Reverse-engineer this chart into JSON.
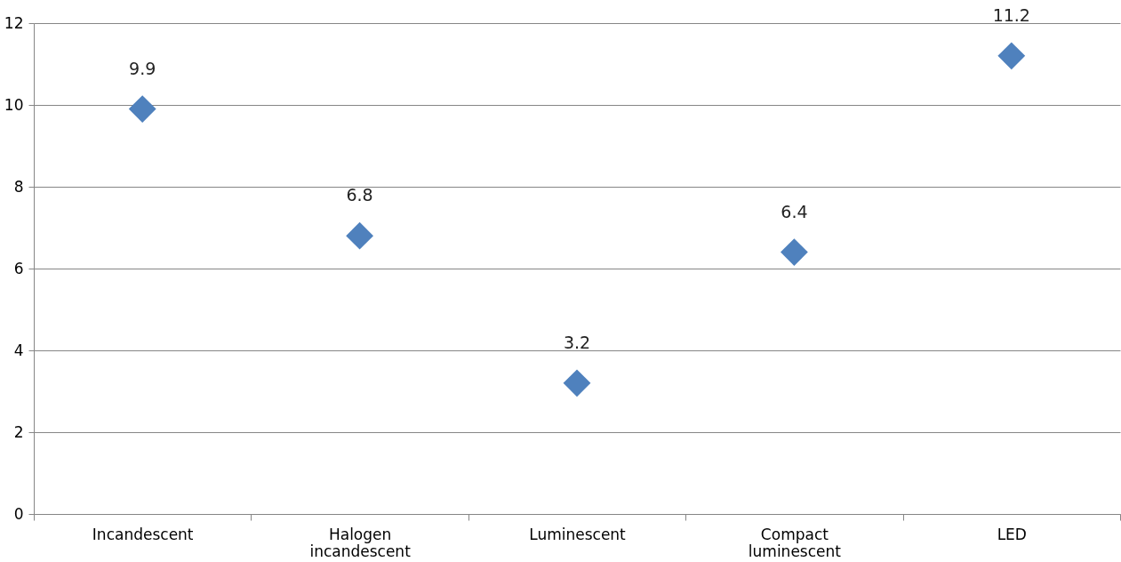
{
  "chart_data": {
    "type": "scatter",
    "categories": [
      "Incandescent",
      "Halogen incandescent",
      "Luminescent",
      "Compact luminescent",
      "LED"
    ],
    "series": [
      {
        "color": "#4f81bd",
        "values": [
          9.9,
          6.8,
          3.2,
          6.4,
          11.2
        ]
      }
    ],
    "ylim": [
      0,
      12
    ],
    "yticks": [
      0,
      2,
      4,
      6,
      8,
      10,
      12
    ],
    "grid": "y",
    "marker": "diamond",
    "data_labels": true,
    "legend": false
  }
}
